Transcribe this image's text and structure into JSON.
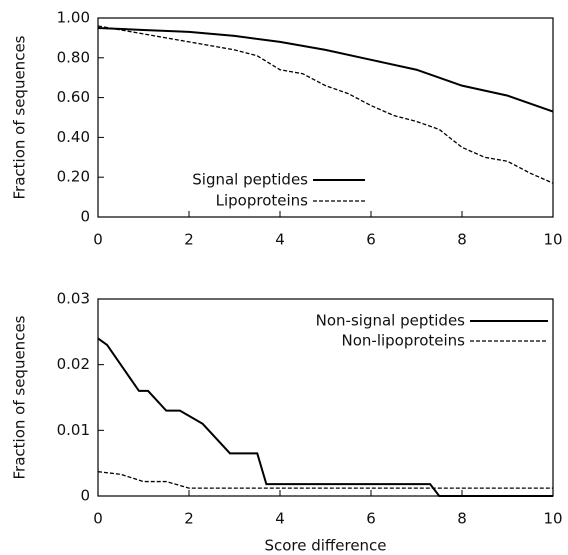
{
  "chart_data": [
    {
      "type": "line",
      "ylabel": "Fraction of sequences",
      "xlim": [
        0,
        10
      ],
      "xticks": [
        0,
        2,
        4,
        6,
        8,
        10
      ],
      "ylim": [
        0,
        1
      ],
      "yticks": [
        0,
        {
          "value": 0.2,
          "label": "0.20"
        },
        {
          "value": 0.4,
          "label": "0.40"
        },
        {
          "value": 0.6,
          "label": "0.60"
        },
        {
          "value": 0.8,
          "label": "0.80"
        },
        {
          "value": 1,
          "label": "1.00"
        }
      ],
      "legend": "lower left",
      "series": [
        {
          "name": "Signal peptides",
          "color": "#000000",
          "linestyle": "solid",
          "x": [
            0,
            1,
            2,
            3,
            4,
            5,
            6,
            7,
            8,
            9,
            10
          ],
          "values": [
            0.95,
            0.94,
            0.93,
            0.91,
            0.88,
            0.84,
            0.79,
            0.74,
            0.66,
            0.61,
            0.53
          ]
        },
        {
          "name": "Lipoproteins",
          "color": "#000000",
          "linestyle": "dashed",
          "x": [
            0,
            1,
            2,
            3,
            3.5,
            4,
            4.5,
            5,
            5.5,
            6,
            6.5,
            7,
            7.5,
            8,
            8.5,
            9,
            9.5,
            10
          ],
          "values": [
            0.96,
            0.92,
            0.88,
            0.84,
            0.81,
            0.74,
            0.72,
            0.66,
            0.62,
            0.56,
            0.51,
            0.48,
            0.44,
            0.35,
            0.3,
            0.28,
            0.22,
            0.17
          ]
        }
      ]
    },
    {
      "type": "line",
      "ylabel": "Fraction of sequences",
      "xlabel": "Score difference",
      "xlim": [
        0,
        10
      ],
      "xticks": [
        0,
        2,
        4,
        6,
        8,
        10
      ],
      "ylim": [
        0,
        0.03
      ],
      "yticks": [
        0,
        0.01,
        0.02,
        0.03
      ],
      "legend": "upper right",
      "series": [
        {
          "name": "Non-signal peptides",
          "color": "#000000",
          "linestyle": "solid",
          "x": [
            0,
            0.2,
            0.9,
            1.1,
            1.5,
            1.8,
            2.3,
            2.9,
            3.5,
            3.7,
            7.3,
            7.5,
            10
          ],
          "values": [
            0.024,
            0.023,
            0.016,
            0.016,
            0.013,
            0.013,
            0.011,
            0.0065,
            0.0065,
            0.0018,
            0.0018,
            0,
            0
          ]
        },
        {
          "name": "Non-lipoproteins",
          "color": "#000000",
          "linestyle": "dashed",
          "x": [
            0,
            0.5,
            1,
            1.5,
            2,
            10
          ],
          "values": [
            0.0037,
            0.0033,
            0.0022,
            0.0022,
            0.0012,
            0.0012
          ]
        }
      ]
    }
  ]
}
